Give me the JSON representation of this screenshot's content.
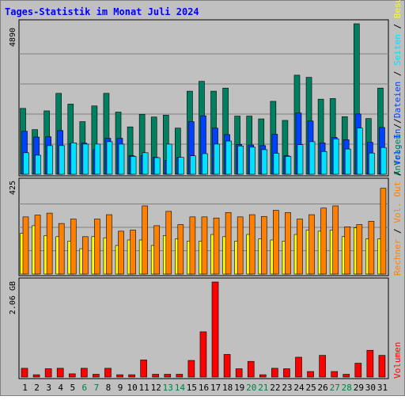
{
  "title": "Tages-Statistik im Monat Juli 2024",
  "colors": {
    "frame_bg": "#c0c0c0",
    "plot_bg": "#c0c0c0",
    "border": "#000000",
    "title": "#0000ff",
    "day_weekday": "#000000",
    "day_weekend": "#008040",
    "grid": "#808080",
    "anfragen": "#008060",
    "dateien": "#0040ff",
    "seiten": "#00e0ff",
    "besuche": "#ffff00",
    "rechner": "#ff8000",
    "volumen": "#ff0000"
  },
  "legend": {
    "top": {
      "anfragen": "Anfragen",
      "sep1": " / ",
      "dateien": "Dateien",
      "sep2": " / ",
      "seiten": "Seiten",
      "sep3": " / ",
      "besuche": "Besuche"
    },
    "middle": {
      "rechner": "Rechner",
      "sep1": " / ",
      "out": "Vol. Out",
      "sep2": " / ",
      "in": "Vol. In",
      "sep3": " / "
    },
    "bottom": {
      "volumen": "Volumen"
    }
  },
  "chart_data": [
    {
      "type": "bar",
      "title": "Tages-Statistik im Monat Juli 2024",
      "y_max_label": "4890",
      "ylim": [
        0,
        4890
      ],
      "categories": [
        "1",
        "2",
        "3",
        "4",
        "5",
        "6",
        "7",
        "8",
        "9",
        "10",
        "11",
        "12",
        "13",
        "14",
        "15",
        "16",
        "17",
        "18",
        "19",
        "20",
        "21",
        "22",
        "23",
        "24",
        "25",
        "26",
        "27",
        "28",
        "29",
        "30",
        "31"
      ],
      "weekend_days": [
        "6",
        "7",
        "13",
        "14",
        "20",
        "21",
        "27",
        "28"
      ],
      "series": [
        {
          "name": "Anfragen",
          "values": [
            2140,
            1450,
            2060,
            2630,
            2280,
            1710,
            2220,
            2630,
            2020,
            1540,
            1950,
            1860,
            1920,
            1500,
            2700,
            3020,
            2700,
            2800,
            1890,
            1890,
            1800,
            2370,
            1750,
            3220,
            3150,
            2440,
            2460,
            1870,
            4890,
            1810,
            2800
          ]
        },
        {
          "name": "Dateien",
          "values": [
            1400,
            1210,
            1220,
            1420,
            1000,
            1010,
            800,
            1170,
            1170,
            600,
            600,
            550,
            450,
            540,
            1710,
            1900,
            1500,
            1290,
            970,
            950,
            930,
            1300,
            600,
            1990,
            1730,
            1020,
            1200,
            1120,
            1960,
            1040,
            1520
          ]
        },
        {
          "name": "Seiten",
          "values": [
            700,
            620,
            930,
            930,
            1020,
            980,
            980,
            1060,
            980,
            580,
            700,
            540,
            980,
            550,
            600,
            670,
            980,
            1080,
            920,
            880,
            800,
            680,
            580,
            960,
            1060,
            740,
            1150,
            820,
            1500,
            690,
            870
          ]
        }
      ]
    },
    {
      "type": "bar",
      "y_max_label": "425",
      "ylim": [
        0,
        425
      ],
      "categories": [
        "1",
        "2",
        "3",
        "4",
        "5",
        "6",
        "7",
        "8",
        "9",
        "10",
        "11",
        "12",
        "13",
        "14",
        "15",
        "16",
        "17",
        "18",
        "19",
        "20",
        "21",
        "22",
        "23",
        "24",
        "25",
        "26",
        "27",
        "28",
        "29",
        "30",
        "31"
      ],
      "series": [
        {
          "name": "Besuche",
          "values": [
            185,
            220,
            175,
            170,
            150,
            115,
            170,
            165,
            130,
            155,
            155,
            130,
            175,
            160,
            150,
            150,
            180,
            170,
            150,
            180,
            160,
            155,
            150,
            180,
            200,
            195,
            200,
            170,
            210,
            160,
            160
          ]
        },
        {
          "name": "Rechner",
          "values": [
            260,
            268,
            277,
            230,
            250,
            170,
            250,
            270,
            195,
            200,
            310,
            220,
            285,
            225,
            260,
            260,
            255,
            280,
            260,
            270,
            262,
            290,
            280,
            250,
            270,
            300,
            310,
            215,
            225,
            240,
            390
          ]
        }
      ]
    },
    {
      "type": "bar",
      "y_max_label": "2.06 GB",
      "ylim": [
        0,
        2.06
      ],
      "categories": [
        "1",
        "2",
        "3",
        "4",
        "5",
        "6",
        "7",
        "8",
        "9",
        "10",
        "11",
        "12",
        "13",
        "14",
        "15",
        "16",
        "17",
        "18",
        "19",
        "20",
        "21",
        "22",
        "23",
        "24",
        "25",
        "26",
        "27",
        "28",
        "29",
        "30",
        "31"
      ],
      "series": [
        {
          "name": "Volumen",
          "values": [
            0.19,
            0.05,
            0.18,
            0.19,
            0.07,
            0.19,
            0.06,
            0.19,
            0.05,
            0.05,
            0.37,
            0.06,
            0.06,
            0.06,
            0.36,
            0.98,
            2.06,
            0.49,
            0.18,
            0.34,
            0.05,
            0.19,
            0.18,
            0.43,
            0.12,
            0.47,
            0.12,
            0.06,
            0.3,
            0.58,
            0.47
          ]
        }
      ]
    }
  ]
}
